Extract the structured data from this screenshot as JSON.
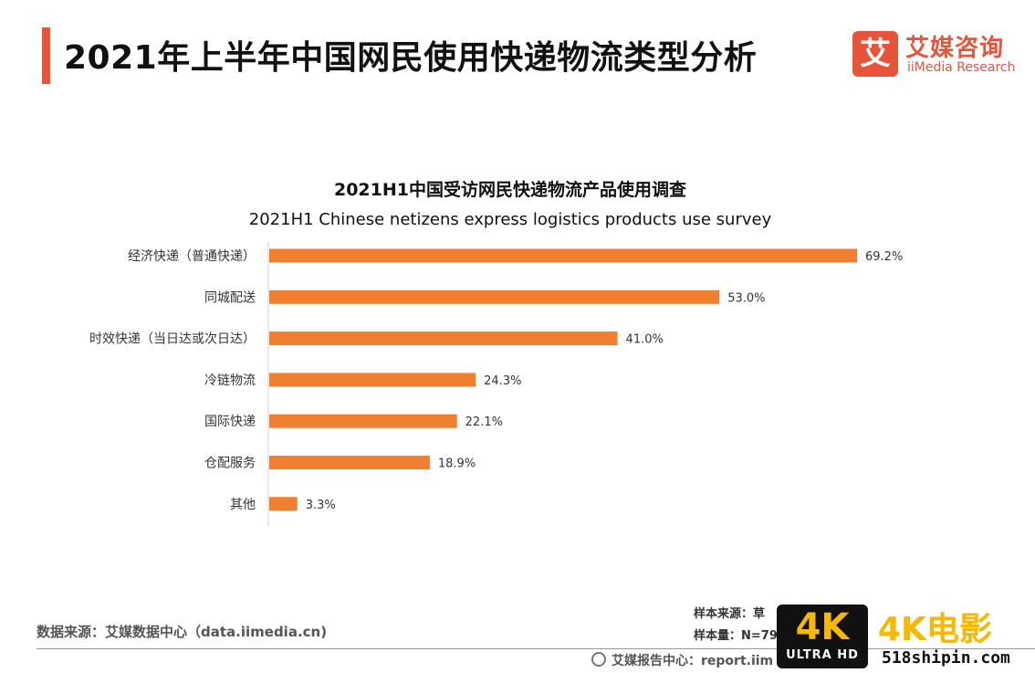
{
  "header": {
    "title": "2021年上半年中国网民使用快递物流类型分析",
    "logo_mark": "艾",
    "logo_cn": "艾媒咨询",
    "logo_en": "iiMedia Research"
  },
  "chart_data": {
    "type": "bar",
    "orientation": "horizontal",
    "title": "2021H1中国受访网民快递物流产品使用调查",
    "subtitle": "2021H1 Chinese netizens express logistics products use survey",
    "categories": [
      "经济快递（普通快递）",
      "同城配送",
      "时效快递（当日达或次日达）",
      "冷链物流",
      "国际快递",
      "仓配服务",
      "其他"
    ],
    "values": [
      69.2,
      53.0,
      41.0,
      24.3,
      22.1,
      18.9,
      3.3
    ],
    "value_labels": [
      "69.2%",
      "53.0%",
      "41.0%",
      "24.3%",
      "22.1%",
      "18.9%",
      "3.3%"
    ],
    "bar_color": "#f07f2f",
    "xlim": [
      0,
      75
    ],
    "grid": false,
    "legend": "none"
  },
  "footer": {
    "source": "数据来源：艾媒数据中心（data.iimedia.cn)",
    "sample_source": "样本来源：草",
    "sample_size": "样本量：N=79",
    "center": "艾媒报告中心：report.iim"
  },
  "watermark": {
    "badge_top": "4K",
    "badge_bottom": "ULTRA HD",
    "title": "4K电影",
    "url": "518shipin.com",
    "color": "#f6b800"
  }
}
